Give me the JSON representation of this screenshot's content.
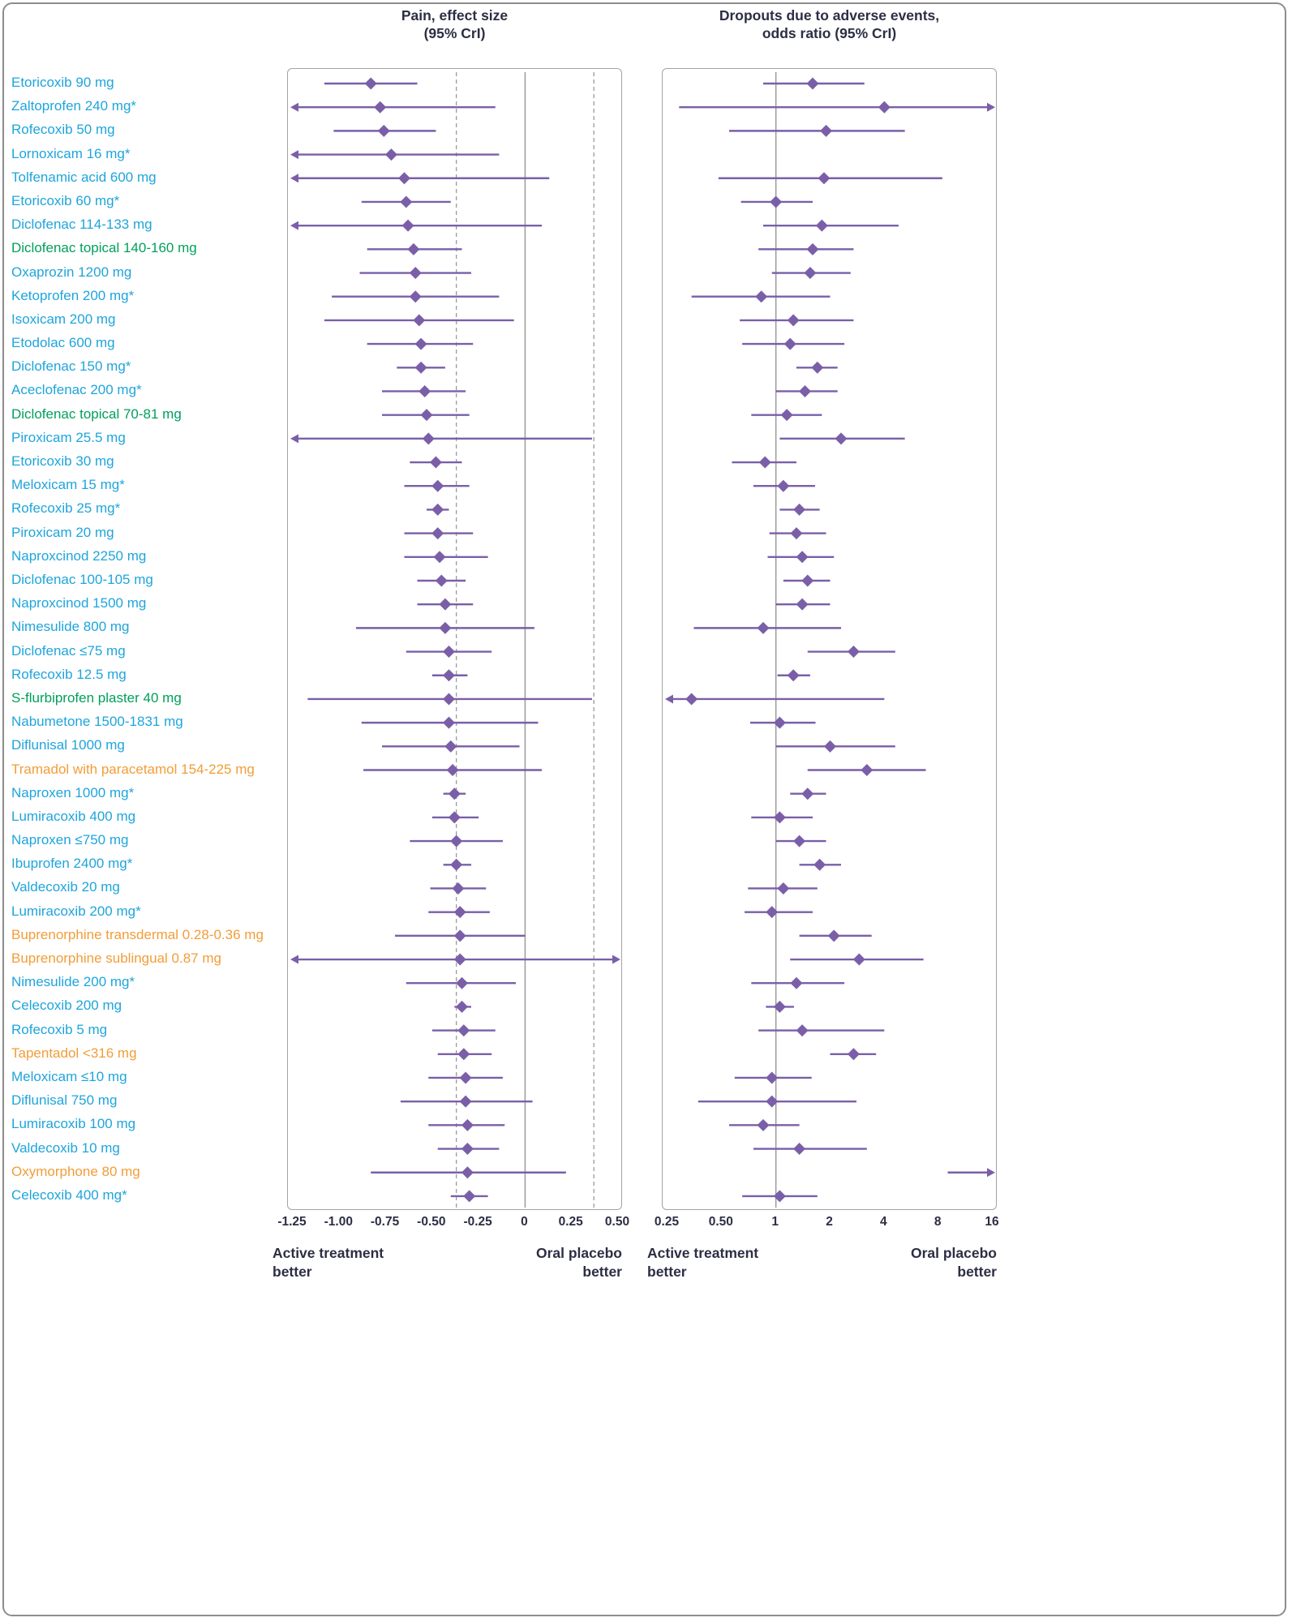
{
  "headers": {
    "pain_line1": "Pain, effect size",
    "pain_line2": "(95% CrI)",
    "dropouts_line1": "Dropouts due to adverse events,",
    "dropouts_line2": "odds ratio (95% CrI)"
  },
  "footers": {
    "left_line1": "Active treatment",
    "left_line2": "better",
    "right_line1": "Oral placebo",
    "right_line2": "better"
  },
  "chart_data": {
    "type": "forest",
    "colors": {
      "marker": "#7a5fa8",
      "ref": "#9b9b9b",
      "text": "#2c2e43"
    },
    "group_colors": {
      "nsaid": "#1ea5dc",
      "topical": "#00a05c",
      "opioid": "#f29d38"
    },
    "panels": [
      {
        "id": "pain",
        "title": "Pain, effect size (95% CrI)",
        "scale": "linear",
        "domain": [
          -1.25,
          0.5
        ],
        "ticks": [
          -1.25,
          -1.0,
          -0.75,
          -0.5,
          -0.25,
          0,
          0.25,
          0.5
        ],
        "tick_labels": [
          "-1.25",
          "-1.00",
          "-0.75",
          "-0.50",
          "-0.25",
          "0",
          "0.25",
          "0.50"
        ],
        "ref_solid": [
          0
        ],
        "ref_dashed": [
          -0.37,
          0.37
        ]
      },
      {
        "id": "dropouts",
        "title": "Dropouts due to adverse events, odds ratio (95% CrI)",
        "scale": "log2",
        "domain": [
          0.25,
          16
        ],
        "ticks": [
          0.25,
          0.5,
          1,
          2,
          4,
          8,
          16
        ],
        "tick_labels": [
          "0.25",
          "0.50",
          "1",
          "2",
          "4",
          "8",
          "16"
        ],
        "ref_solid": [
          1
        ],
        "ref_dashed": []
      }
    ],
    "rows": [
      {
        "label": "Etoricoxib 90 mg",
        "group": "nsaid",
        "pain": {
          "est": -0.83,
          "lo": -1.08,
          "hi": -0.58
        },
        "dropouts": {
          "est": 1.6,
          "lo": 0.85,
          "hi": 3.1
        }
      },
      {
        "label": "Zaltoprofen 240 mg*",
        "group": "nsaid",
        "pain": {
          "est": -0.78,
          "lo": null,
          "hi": -0.16,
          "lo_arrow": true
        },
        "dropouts": {
          "est": 4.0,
          "lo": 0.29,
          "hi": null,
          "hi_arrow": true
        }
      },
      {
        "label": "Rofecoxib 50 mg",
        "group": "nsaid",
        "pain": {
          "est": -0.76,
          "lo": -1.03,
          "hi": -0.48
        },
        "dropouts": {
          "est": 1.9,
          "lo": 0.55,
          "hi": 5.2
        }
      },
      {
        "label": "Lornoxicam 16 mg*",
        "group": "nsaid",
        "pain": {
          "est": -0.72,
          "lo": null,
          "hi": -0.14,
          "lo_arrow": true
        },
        "dropouts": null
      },
      {
        "label": "Tolfenamic acid 600 mg",
        "group": "nsaid",
        "pain": {
          "est": -0.65,
          "lo": null,
          "hi": 0.13,
          "lo_arrow": true
        },
        "dropouts": {
          "est": 1.85,
          "lo": 0.48,
          "hi": 8.4
        }
      },
      {
        "label": "Etoricoxib 60 mg*",
        "group": "nsaid",
        "pain": {
          "est": -0.64,
          "lo": -0.88,
          "hi": -0.4
        },
        "dropouts": {
          "est": 1.0,
          "lo": 0.64,
          "hi": 1.6
        }
      },
      {
        "label": "Diclofenac 114-133 mg",
        "group": "nsaid",
        "pain": {
          "est": -0.63,
          "lo": null,
          "hi": 0.09,
          "lo_arrow": true
        },
        "dropouts": {
          "est": 1.8,
          "lo": 0.85,
          "hi": 4.8
        }
      },
      {
        "label": "Diclofenac topical 140-160 mg",
        "group": "topical",
        "pain": {
          "est": -0.6,
          "lo": -0.85,
          "hi": -0.34
        },
        "dropouts": {
          "est": 1.6,
          "lo": 0.8,
          "hi": 2.7
        }
      },
      {
        "label": "Oxaprozin 1200 mg",
        "group": "nsaid",
        "pain": {
          "est": -0.59,
          "lo": -0.89,
          "hi": -0.29
        },
        "dropouts": {
          "est": 1.55,
          "lo": 0.95,
          "hi": 2.6
        }
      },
      {
        "label": "Ketoprofen 200 mg*",
        "group": "nsaid",
        "pain": {
          "est": -0.59,
          "lo": -1.04,
          "hi": -0.14
        },
        "dropouts": {
          "est": 0.83,
          "lo": 0.34,
          "hi": 2.0
        }
      },
      {
        "label": "Isoxicam 200 mg",
        "group": "nsaid",
        "pain": {
          "est": -0.57,
          "lo": -1.08,
          "hi": -0.06
        },
        "dropouts": {
          "est": 1.25,
          "lo": 0.63,
          "hi": 2.7
        }
      },
      {
        "label": "Etodolac 600 mg",
        "group": "nsaid",
        "pain": {
          "est": -0.56,
          "lo": -0.85,
          "hi": -0.28
        },
        "dropouts": {
          "est": 1.2,
          "lo": 0.65,
          "hi": 2.4
        }
      },
      {
        "label": "Diclofenac 150 mg*",
        "group": "nsaid",
        "pain": {
          "est": -0.56,
          "lo": -0.69,
          "hi": -0.43
        },
        "dropouts": {
          "est": 1.7,
          "lo": 1.3,
          "hi": 2.2
        }
      },
      {
        "label": "Aceclofenac 200 mg*",
        "group": "nsaid",
        "pain": {
          "est": -0.54,
          "lo": -0.77,
          "hi": -0.32
        },
        "dropouts": {
          "est": 1.45,
          "lo": 1.0,
          "hi": 2.2
        }
      },
      {
        "label": "Diclofenac topical 70-81 mg",
        "group": "topical",
        "pain": {
          "est": -0.53,
          "lo": -0.77,
          "hi": -0.3
        },
        "dropouts": {
          "est": 1.15,
          "lo": 0.73,
          "hi": 1.8
        }
      },
      {
        "label": "Piroxicam 25.5 mg",
        "group": "nsaid",
        "pain": {
          "est": -0.52,
          "lo": null,
          "hi": 0.36,
          "lo_arrow": true
        },
        "dropouts": {
          "est": 2.3,
          "lo": 1.05,
          "hi": 5.2
        }
      },
      {
        "label": "Etoricoxib 30 mg",
        "group": "nsaid",
        "pain": {
          "est": -0.48,
          "lo": -0.62,
          "hi": -0.34
        },
        "dropouts": {
          "est": 0.87,
          "lo": 0.57,
          "hi": 1.3
        }
      },
      {
        "label": "Meloxicam 15 mg*",
        "group": "nsaid",
        "pain": {
          "est": -0.47,
          "lo": -0.65,
          "hi": -0.3
        },
        "dropouts": {
          "est": 1.1,
          "lo": 0.75,
          "hi": 1.65
        }
      },
      {
        "label": "Rofecoxib 25 mg*",
        "group": "nsaid",
        "pain": {
          "est": -0.47,
          "lo": -0.53,
          "hi": -0.41
        },
        "dropouts": {
          "est": 1.35,
          "lo": 1.05,
          "hi": 1.75
        }
      },
      {
        "label": "Piroxicam 20 mg",
        "group": "nsaid",
        "pain": {
          "est": -0.47,
          "lo": -0.65,
          "hi": -0.28
        },
        "dropouts": {
          "est": 1.3,
          "lo": 0.92,
          "hi": 1.9
        }
      },
      {
        "label": "Naproxcinod 2250 mg",
        "group": "nsaid",
        "pain": {
          "est": -0.46,
          "lo": -0.65,
          "hi": -0.2
        },
        "dropouts": {
          "est": 1.4,
          "lo": 0.9,
          "hi": 2.1
        }
      },
      {
        "label": "Diclofenac 100-105 mg",
        "group": "nsaid",
        "pain": {
          "est": -0.45,
          "lo": -0.58,
          "hi": -0.32
        },
        "dropouts": {
          "est": 1.5,
          "lo": 1.1,
          "hi": 2.0
        }
      },
      {
        "label": "Naproxcinod 1500 mg",
        "group": "nsaid",
        "pain": {
          "est": -0.43,
          "lo": -0.58,
          "hi": -0.28
        },
        "dropouts": {
          "est": 1.4,
          "lo": 1.0,
          "hi": 2.0
        }
      },
      {
        "label": "Nimesulide 800 mg",
        "group": "nsaid",
        "pain": {
          "est": -0.43,
          "lo": -0.91,
          "hi": 0.05
        },
        "dropouts": {
          "est": 0.85,
          "lo": 0.35,
          "hi": 2.3
        }
      },
      {
        "label": "Diclofenac ≤75 mg",
        "group": "nsaid",
        "pain": {
          "est": -0.41,
          "lo": -0.64,
          "hi": -0.18
        },
        "dropouts": {
          "est": 2.7,
          "lo": 1.5,
          "hi": 4.6
        }
      },
      {
        "label": "Rofecoxib 12.5 mg",
        "group": "nsaid",
        "pain": {
          "est": -0.41,
          "lo": -0.5,
          "hi": -0.31
        },
        "dropouts": {
          "est": 1.25,
          "lo": 1.02,
          "hi": 1.55
        }
      },
      {
        "label": "S-flurbiprofen plaster 40 mg",
        "group": "topical",
        "pain": {
          "est": -0.41,
          "lo": -1.17,
          "hi": 0.36
        },
        "dropouts": {
          "est": 0.34,
          "lo": null,
          "hi": 4.0,
          "lo_arrow": true
        }
      },
      {
        "label": "Nabumetone 1500-1831 mg",
        "group": "nsaid",
        "pain": {
          "est": -0.41,
          "lo": -0.88,
          "hi": 0.07
        },
        "dropouts": {
          "est": 1.05,
          "lo": 0.72,
          "hi": 1.66
        }
      },
      {
        "label": "Diflunisal 1000 mg",
        "group": "nsaid",
        "pain": {
          "est": -0.4,
          "lo": -0.77,
          "hi": -0.03
        },
        "dropouts": {
          "est": 2.0,
          "lo": 1.0,
          "hi": 4.6
        }
      },
      {
        "label": "Tramadol with paracetamol 154-225 mg",
        "group": "opioid",
        "pain": {
          "est": -0.39,
          "lo": -0.87,
          "hi": 0.09
        },
        "dropouts": {
          "est": 3.2,
          "lo": 1.5,
          "hi": 6.8
        }
      },
      {
        "label": "Naproxen 1000 mg*",
        "group": "nsaid",
        "pain": {
          "est": -0.38,
          "lo": -0.44,
          "hi": -0.32
        },
        "dropouts": {
          "est": 1.5,
          "lo": 1.2,
          "hi": 1.9
        }
      },
      {
        "label": "Lumiracoxib 400 mg",
        "group": "nsaid",
        "pain": {
          "est": -0.38,
          "lo": -0.5,
          "hi": -0.25
        },
        "dropouts": {
          "est": 1.05,
          "lo": 0.73,
          "hi": 1.6
        }
      },
      {
        "label": "Naproxen ≤750 mg",
        "group": "nsaid",
        "pain": {
          "est": -0.37,
          "lo": -0.62,
          "hi": -0.12
        },
        "dropouts": {
          "est": 1.35,
          "lo": 1.0,
          "hi": 1.9
        }
      },
      {
        "label": "Ibuprofen 2400 mg*",
        "group": "nsaid",
        "pain": {
          "est": -0.37,
          "lo": -0.44,
          "hi": -0.29
        },
        "dropouts": {
          "est": 1.75,
          "lo": 1.35,
          "hi": 2.3
        }
      },
      {
        "label": "Valdecoxib 20 mg",
        "group": "nsaid",
        "pain": {
          "est": -0.36,
          "lo": -0.51,
          "hi": -0.21
        },
        "dropouts": {
          "est": 1.1,
          "lo": 0.7,
          "hi": 1.7
        }
      },
      {
        "label": "Lumiracoxib 200 mg*",
        "group": "nsaid",
        "pain": {
          "est": -0.35,
          "lo": -0.52,
          "hi": -0.19
        },
        "dropouts": {
          "est": 0.95,
          "lo": 0.67,
          "hi": 1.6
        }
      },
      {
        "label": "Buprenorphine transdermal 0.28-0.36 mg",
        "group": "opioid",
        "pain": {
          "est": -0.35,
          "lo": -0.7,
          "hi": 0.0
        },
        "dropouts": {
          "est": 2.1,
          "lo": 1.35,
          "hi": 3.4
        }
      },
      {
        "label": "Buprenorphine sublingual 0.87 mg",
        "group": "opioid",
        "pain": {
          "est": -0.35,
          "lo": null,
          "hi": null,
          "lo_arrow": true,
          "hi_arrow": true
        },
        "dropouts": {
          "est": 2.9,
          "lo": 1.2,
          "hi": 6.6
        }
      },
      {
        "label": "Nimesulide 200 mg*",
        "group": "nsaid",
        "pain": {
          "est": -0.34,
          "lo": -0.64,
          "hi": -0.05
        },
        "dropouts": {
          "est": 1.3,
          "lo": 0.73,
          "hi": 2.4
        }
      },
      {
        "label": "Celecoxib 200 mg",
        "group": "nsaid",
        "pain": {
          "est": -0.34,
          "lo": -0.38,
          "hi": -0.29
        },
        "dropouts": {
          "est": 1.05,
          "lo": 0.88,
          "hi": 1.26
        }
      },
      {
        "label": "Rofecoxib 5 mg",
        "group": "nsaid",
        "pain": {
          "est": -0.33,
          "lo": -0.5,
          "hi": -0.16
        },
        "dropouts": {
          "est": 1.4,
          "lo": 0.8,
          "hi": 4.0
        }
      },
      {
        "label": "Tapentadol <316 mg",
        "group": "opioid",
        "pain": {
          "est": -0.33,
          "lo": -0.47,
          "hi": -0.18
        },
        "dropouts": {
          "est": 2.7,
          "lo": 2.0,
          "hi": 3.6
        }
      },
      {
        "label": "Meloxicam ≤10 mg",
        "group": "nsaid",
        "pain": {
          "est": -0.32,
          "lo": -0.52,
          "hi": -0.12
        },
        "dropouts": {
          "est": 0.95,
          "lo": 0.59,
          "hi": 1.58
        }
      },
      {
        "label": "Diflunisal 750 mg",
        "group": "nsaid",
        "pain": {
          "est": -0.32,
          "lo": -0.67,
          "hi": 0.04
        },
        "dropouts": {
          "est": 0.95,
          "lo": 0.37,
          "hi": 2.8
        }
      },
      {
        "label": "Lumiracoxib 100 mg",
        "group": "nsaid",
        "pain": {
          "est": -0.31,
          "lo": -0.52,
          "hi": -0.11
        },
        "dropouts": {
          "est": 0.85,
          "lo": 0.55,
          "hi": 1.35
        }
      },
      {
        "label": "Valdecoxib 10 mg",
        "group": "nsaid",
        "pain": {
          "est": -0.31,
          "lo": -0.47,
          "hi": -0.14
        },
        "dropouts": {
          "est": 1.35,
          "lo": 0.75,
          "hi": 3.2
        }
      },
      {
        "label": "Oxymorphone 80 mg",
        "group": "opioid",
        "pain": {
          "est": -0.31,
          "lo": -0.83,
          "hi": 0.22
        },
        "dropouts": {
          "est": null,
          "lo": 9.0,
          "hi": null,
          "hi_arrow": true
        }
      },
      {
        "label": "Celecoxib 400 mg*",
        "group": "nsaid",
        "pain": {
          "est": -0.3,
          "lo": -0.4,
          "hi": -0.2
        },
        "dropouts": {
          "est": 1.05,
          "lo": 0.65,
          "hi": 1.7
        }
      }
    ]
  }
}
